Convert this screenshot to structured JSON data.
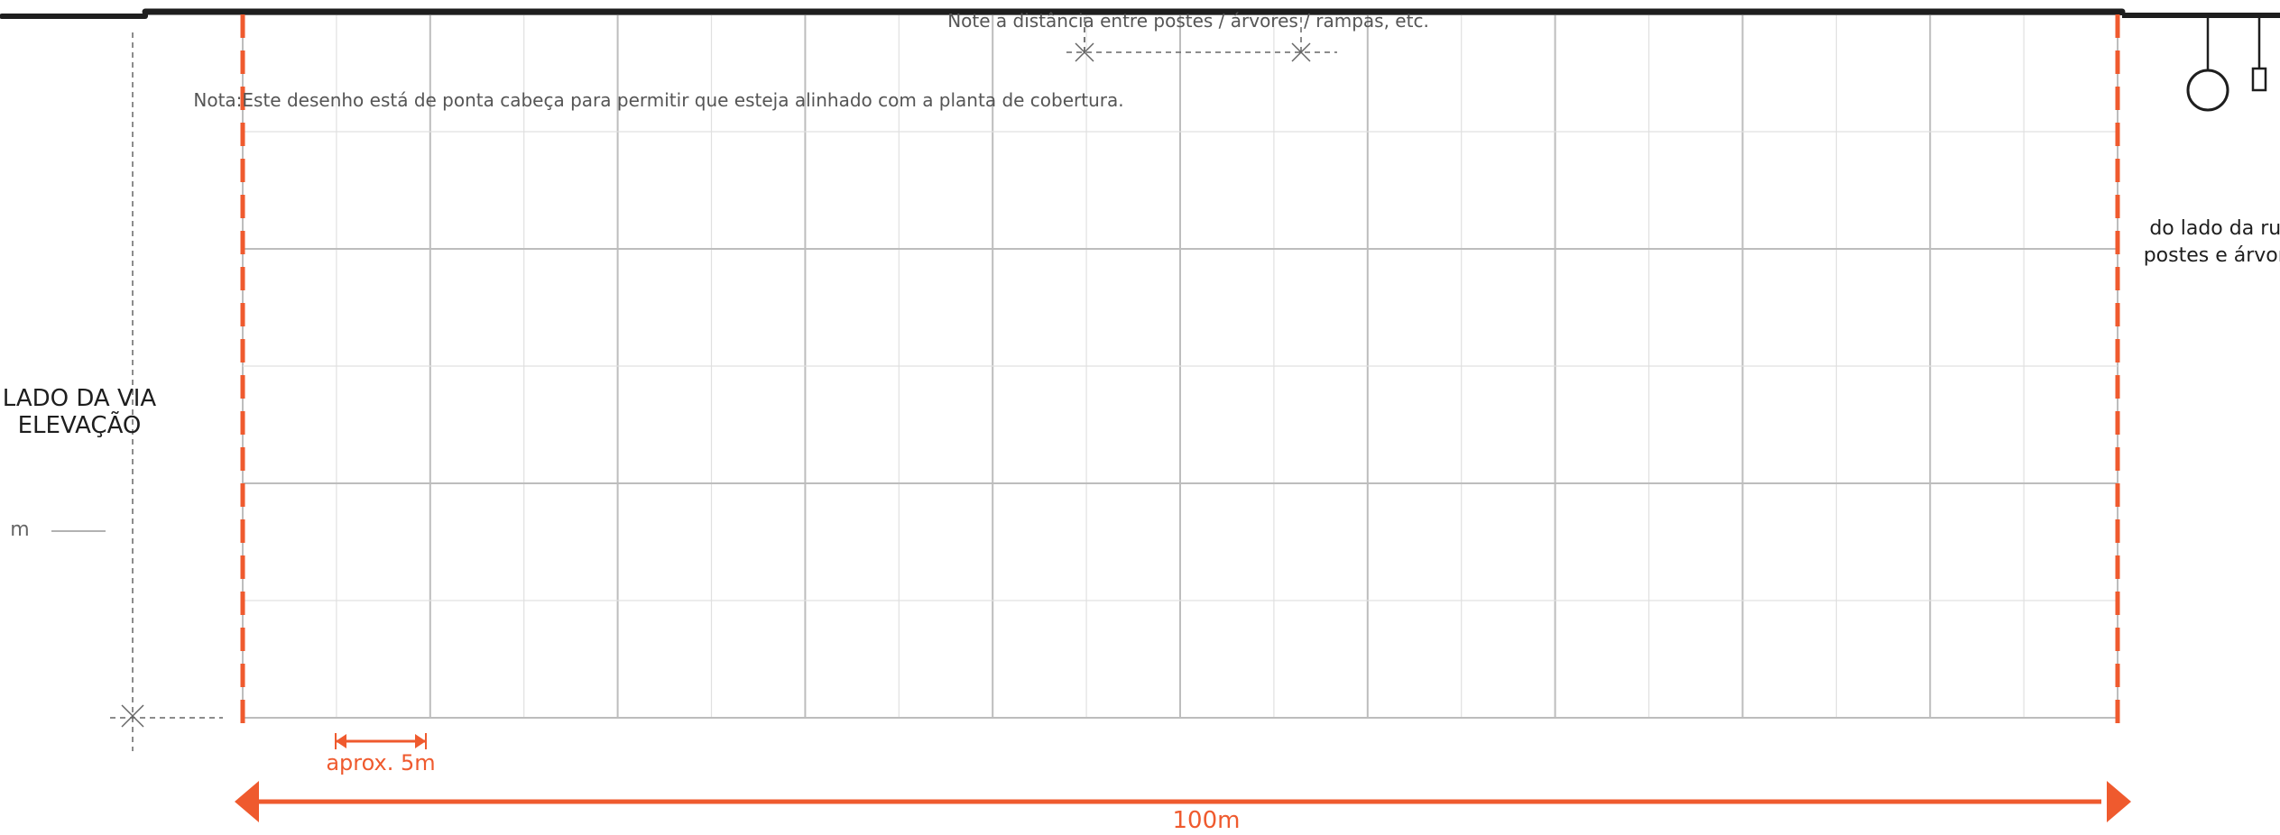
{
  "drawing": {
    "elevation_title_line1": "ELEVAÇÃO",
    "elevation_title_line2": "LADO DA VIA",
    "height_label": "m",
    "posts_label_line1": "postes e árvores",
    "posts_label_line2": "do lado da rua",
    "note_orientation": "Nota:Este desenho está de ponta cabeça  para permitir que esteja alinhado com a planta de cobertura.",
    "note_distance": "Note a distância entre postes / árvores / rampas, etc.",
    "total_length_label": "100m",
    "module_label": "aprox. 5m"
  },
  "colors": {
    "accent": "#ef5a2e",
    "ink": "#1e1e1e",
    "grid_major": "#bdbdbd",
    "grid_minor": "#e0e0e0",
    "note_text": "#555555"
  },
  "scale": {
    "total_length_m": 100,
    "module_m": 5,
    "modules": 20
  }
}
